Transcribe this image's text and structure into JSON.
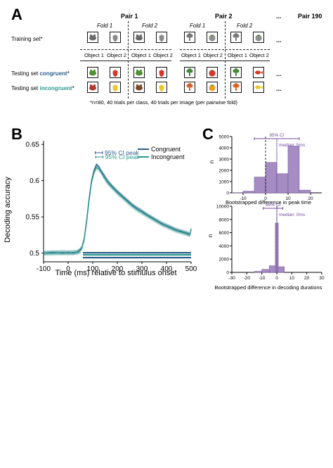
{
  "panelA": {
    "letter": "A",
    "pair1": "Pair 1",
    "pair2": "Pair 2",
    "ellipsis": "...",
    "pair190": "Pair 190",
    "fold1": "Fold 1",
    "fold2": "Fold 2",
    "training_set": "Training set*",
    "object1": "Object 1",
    "object2": "Object 2",
    "testing_set_prefix": "Testing set ",
    "congruent_word": "congruent",
    "incongruent_word": "incongruent",
    "asterisk": "*",
    "footnote": "*n=80, 40 trials per class, 40 trials per image (per pairwise fold)",
    "colors": {
      "congruent": "#2f5e8a",
      "incongruent": "#2a9a8e"
    }
  },
  "panelB": {
    "letter": "B",
    "chart_data": {
      "type": "line",
      "xlabel": "Time (ms) relative to stimulus onset",
      "ylabel": "Decoding accuracy",
      "xlim": [
        -100,
        500
      ],
      "ylim": [
        0.49,
        0.655
      ],
      "xticks": [
        "-100",
        "0",
        "100",
        "200",
        "300",
        "400",
        "500"
      ],
      "yticks": [
        "0.5",
        "0.55",
        "0.6",
        "0.65"
      ],
      "chance_level": 0.5,
      "legend_position": "top-right",
      "series": [
        {
          "name": "Congruent",
          "color": "#2f5e8a",
          "x": [
            -100,
            -60,
            -20,
            0,
            20,
            40,
            55,
            65,
            75,
            85,
            95,
            105,
            115,
            125,
            135,
            145,
            160,
            180,
            200,
            220,
            240,
            260,
            280,
            300,
            320,
            340,
            360,
            380,
            400,
            420,
            440,
            460,
            480,
            495,
            500
          ],
          "y": [
            0.5,
            0.501,
            0.5,
            0.501,
            0.5,
            0.502,
            0.507,
            0.52,
            0.545,
            0.575,
            0.6,
            0.614,
            0.622,
            0.619,
            0.613,
            0.608,
            0.6,
            0.592,
            0.585,
            0.579,
            0.573,
            0.567,
            0.562,
            0.558,
            0.553,
            0.549,
            0.545,
            0.541,
            0.538,
            0.535,
            0.532,
            0.53,
            0.528,
            0.526,
            0.532
          ]
        },
        {
          "name": "Incongruent",
          "color": "#2a9a8e",
          "x": [
            -100,
            -60,
            -20,
            0,
            20,
            40,
            55,
            65,
            75,
            85,
            95,
            105,
            115,
            125,
            135,
            145,
            160,
            180,
            200,
            220,
            240,
            260,
            280,
            300,
            320,
            340,
            360,
            380,
            400,
            420,
            440,
            460,
            480,
            495,
            500
          ],
          "y": [
            0.5,
            0.5,
            0.501,
            0.5,
            0.501,
            0.501,
            0.506,
            0.518,
            0.542,
            0.572,
            0.597,
            0.611,
            0.618,
            0.616,
            0.611,
            0.605,
            0.597,
            0.59,
            0.583,
            0.577,
            0.571,
            0.565,
            0.56,
            0.556,
            0.552,
            0.548,
            0.544,
            0.54,
            0.537,
            0.534,
            0.531,
            0.529,
            0.527,
            0.525,
            0.534
          ]
        }
      ],
      "ci_peak": [
        {
          "label": "95% CI peak",
          "series": "Congruent",
          "range": [
            110,
            140
          ]
        },
        {
          "label": "95% CI peak",
          "series": "Incongruent",
          "range": [
            112,
            142
          ]
        }
      ],
      "significance_bars": [
        {
          "series": "Congruent",
          "range": [
            60,
            500
          ]
        },
        {
          "series": "Incongruent",
          "range": [
            60,
            500
          ]
        },
        {
          "series": "Congruent",
          "range": [
            60,
            500
          ]
        }
      ]
    }
  },
  "panelC": {
    "letter": "C",
    "chart_data": [
      {
        "type": "bar",
        "title": "",
        "xlabel": "Bootstrapped difference in peak time",
        "ylabel": "n",
        "xlim": [
          -15,
          25
        ],
        "ylim": [
          0,
          5000
        ],
        "xticks": [
          "-10",
          "0",
          "10",
          "20"
        ],
        "yticks": [
          "0",
          "1000",
          "2000",
          "3000",
          "4000",
          "5000"
        ],
        "bin_edges": [
          -15,
          -10,
          -5,
          0,
          5,
          10,
          15,
          20
        ],
        "values": [
          20,
          150,
          1400,
          2700,
          1700,
          4150,
          240
        ],
        "color": "#a58cc2",
        "ci_label": "95% CI",
        "ci_range": [
          -5,
          15
        ],
        "median_label": "median: 5ms",
        "median": 5,
        "zero_line": 0
      },
      {
        "type": "bar",
        "title": "",
        "xlabel": "Bootstrapped difference in decoding durations",
        "ylabel": "n",
        "xlim": [
          -30,
          30
        ],
        "ylim": [
          0,
          10000
        ],
        "xticks": [
          "-30",
          "-20",
          "-10",
          "0",
          "10",
          "20",
          "30"
        ],
        "yticks": [
          "0",
          "2000",
          "4000",
          "6000",
          "8000",
          "10000"
        ],
        "bin_edges": [
          -15,
          -10,
          -5,
          -1,
          1,
          5
        ],
        "values": [
          150,
          450,
          1000,
          7450,
          850
        ],
        "color": "#a58cc2",
        "ci_label": "95% CI",
        "ci_range": [
          -9,
          4
        ],
        "median_label": "median: 0ms",
        "median": 0,
        "zero_line": 0
      }
    ]
  }
}
